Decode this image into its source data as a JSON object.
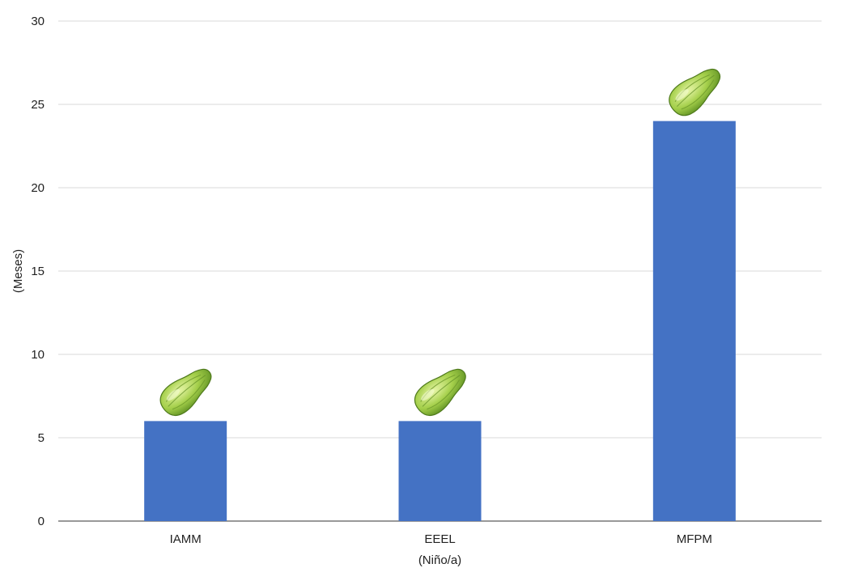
{
  "chart_data": {
    "type": "bar",
    "categories": [
      "IAMM",
      "EEEL",
      "MFPM"
    ],
    "values": [
      6,
      6,
      24
    ],
    "title": "",
    "xlabel": "(Niño/a)",
    "ylabel": "(Meses)",
    "ylim": [
      0,
      30
    ],
    "yticks": [
      0,
      5,
      10,
      15,
      20,
      25,
      30
    ],
    "grid": true,
    "legend": "none",
    "bar_color": "#4472c4",
    "bar_marker": "chayote-icon"
  }
}
